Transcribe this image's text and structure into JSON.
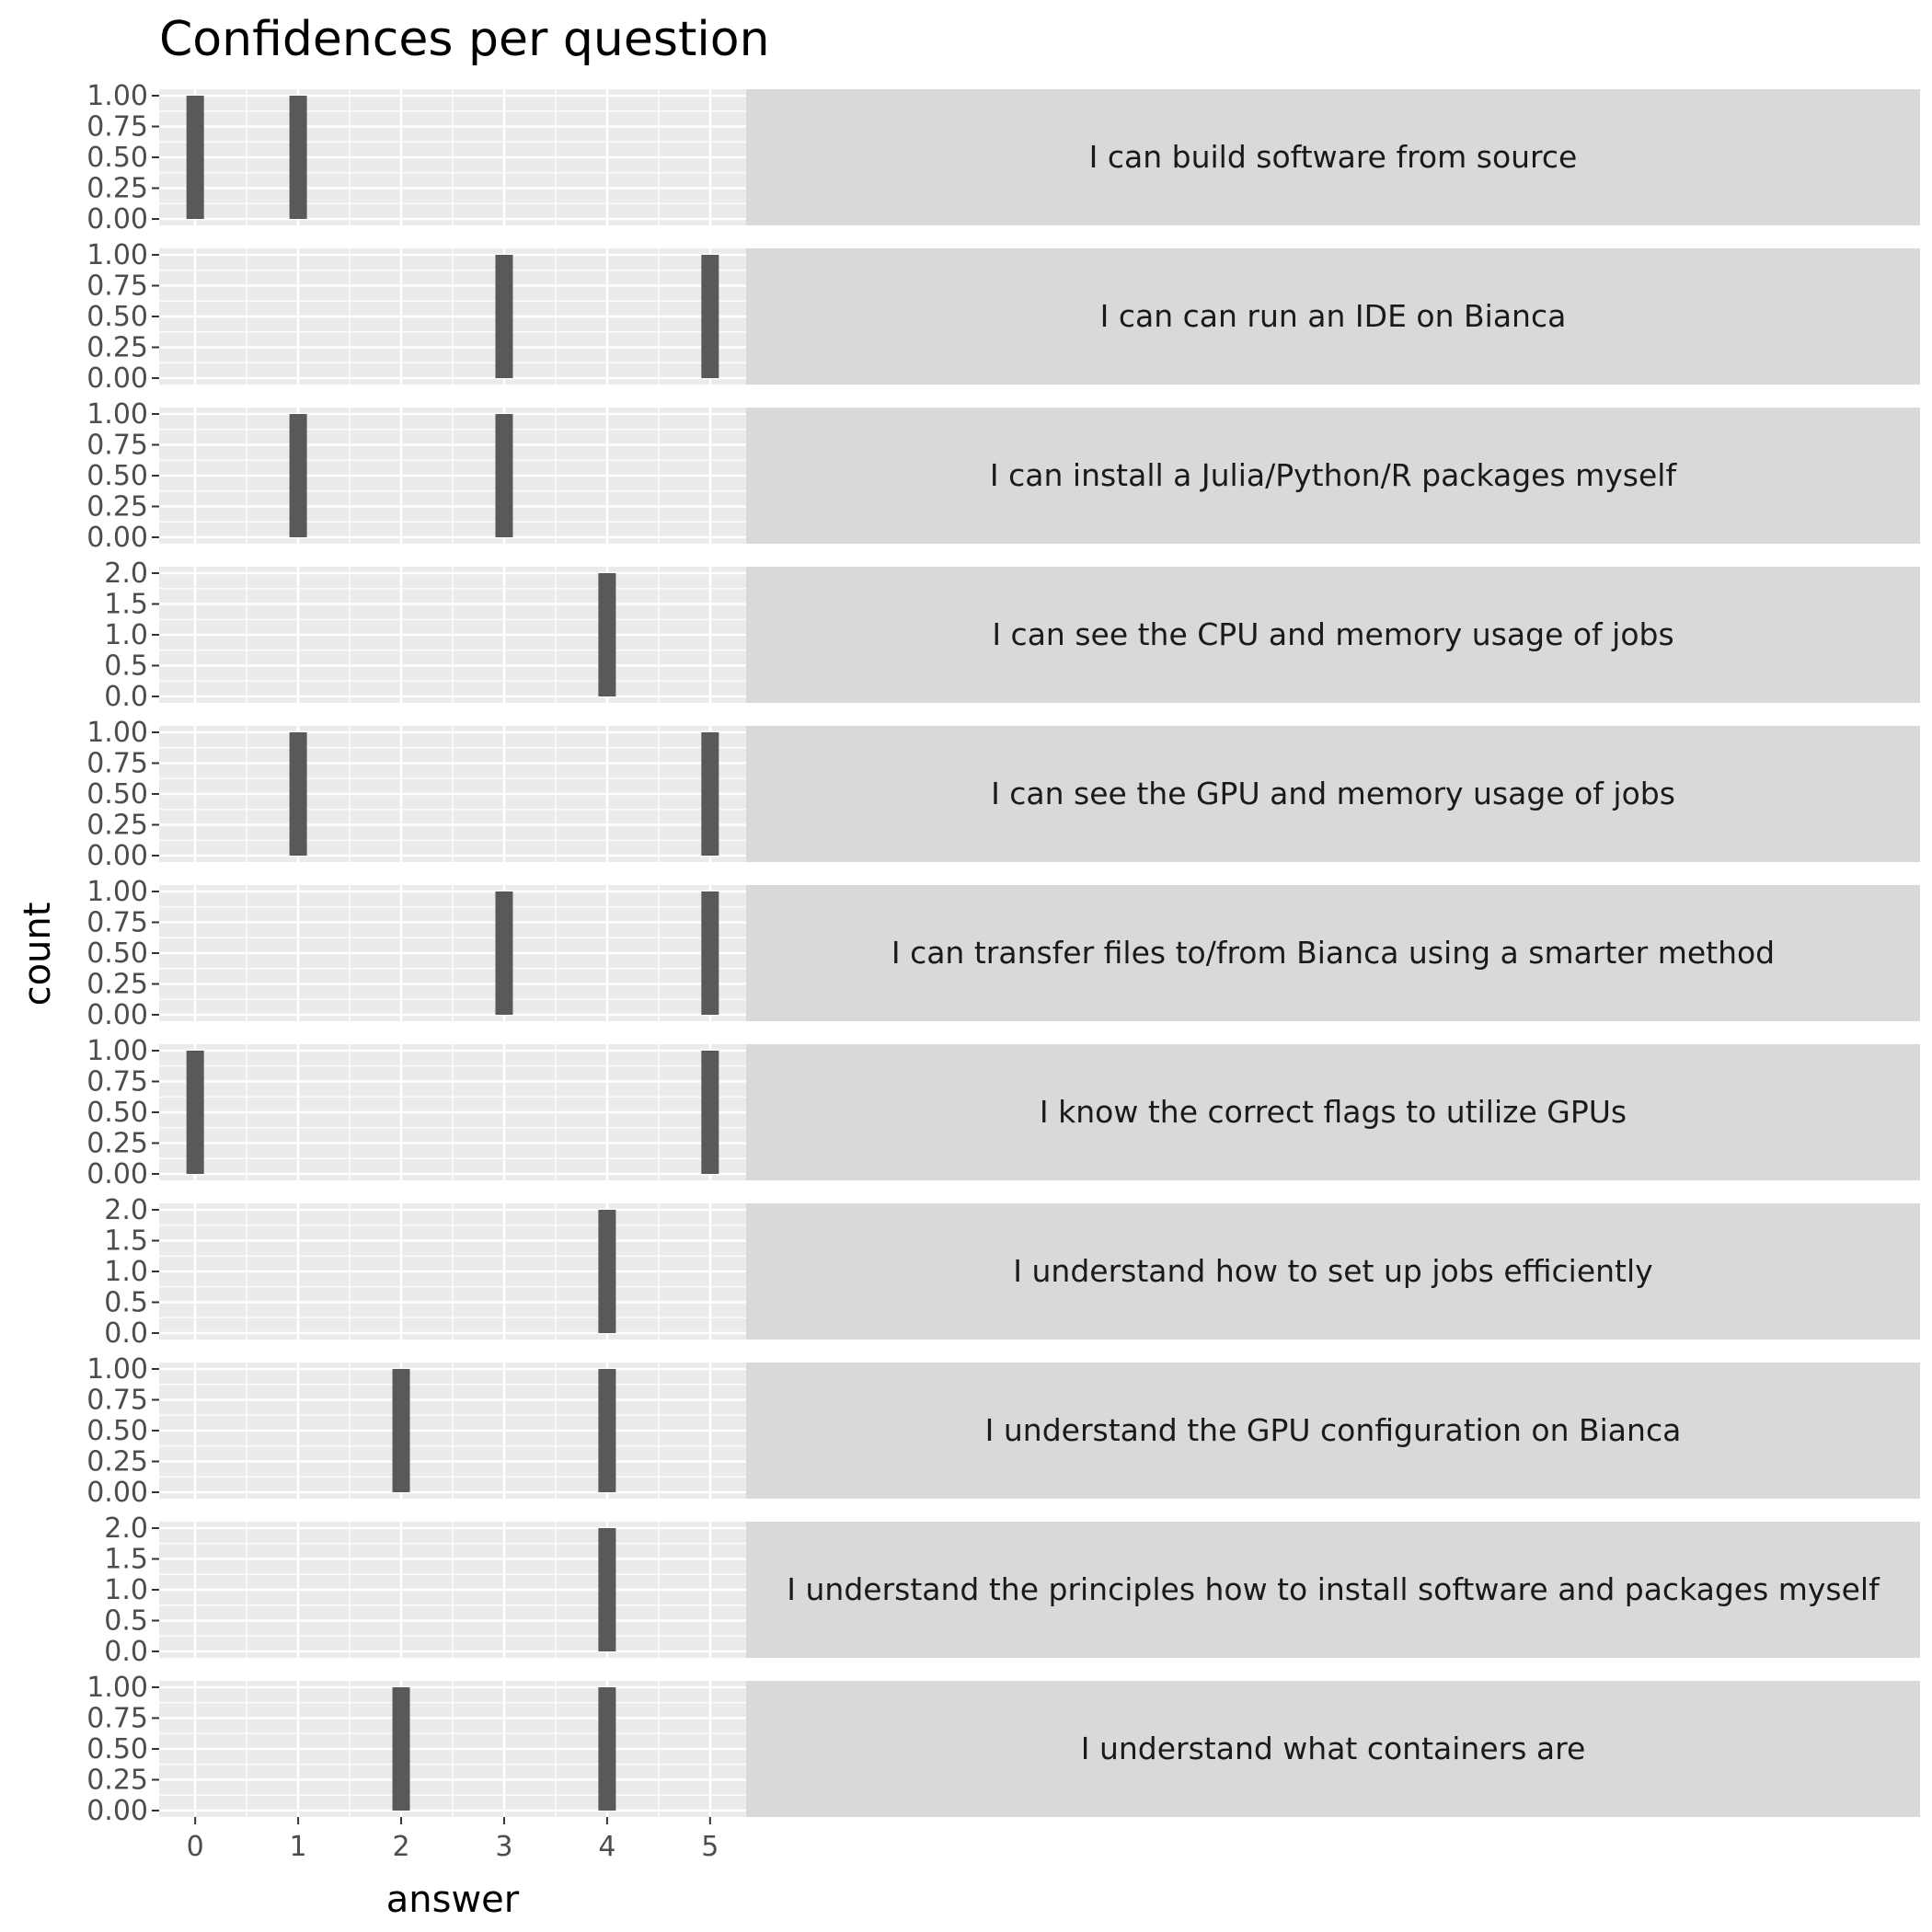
{
  "chart_data": {
    "type": "bar",
    "title": "Confidences per question",
    "xlabel": "answer",
    "ylabel": "count",
    "x_ticks": [
      0,
      1,
      2,
      3,
      4,
      5
    ],
    "xlim": [
      -0.35,
      5.35
    ],
    "grid": true,
    "panels": [
      {
        "label": "I can build software from source",
        "ylim": [
          0,
          1
        ],
        "y_ticks": [
          "0.00",
          "0.25",
          "0.50",
          "0.75",
          "1.00"
        ],
        "bars": [
          {
            "x": 0,
            "y": 1
          },
          {
            "x": 1,
            "y": 1
          }
        ]
      },
      {
        "label": "I can can run an IDE on Bianca",
        "ylim": [
          0,
          1
        ],
        "y_ticks": [
          "0.00",
          "0.25",
          "0.50",
          "0.75",
          "1.00"
        ],
        "bars": [
          {
            "x": 3,
            "y": 1
          },
          {
            "x": 5,
            "y": 1
          }
        ]
      },
      {
        "label": "I can install a Julia/Python/R packages myself",
        "ylim": [
          0,
          1
        ],
        "y_ticks": [
          "0.00",
          "0.25",
          "0.50",
          "0.75",
          "1.00"
        ],
        "bars": [
          {
            "x": 1,
            "y": 1
          },
          {
            "x": 3,
            "y": 1
          }
        ]
      },
      {
        "label": "I can see the CPU and memory usage of jobs",
        "ylim": [
          0,
          2
        ],
        "y_ticks": [
          "0.0",
          "0.5",
          "1.0",
          "1.5",
          "2.0"
        ],
        "bars": [
          {
            "x": 4,
            "y": 2
          }
        ]
      },
      {
        "label": "I can see the GPU and memory usage of jobs",
        "ylim": [
          0,
          1
        ],
        "y_ticks": [
          "0.00",
          "0.25",
          "0.50",
          "0.75",
          "1.00"
        ],
        "bars": [
          {
            "x": 1,
            "y": 1
          },
          {
            "x": 5,
            "y": 1
          }
        ]
      },
      {
        "label": "I can transfer files to/from Bianca using a smarter method",
        "ylim": [
          0,
          1
        ],
        "y_ticks": [
          "0.00",
          "0.25",
          "0.50",
          "0.75",
          "1.00"
        ],
        "bars": [
          {
            "x": 3,
            "y": 1
          },
          {
            "x": 5,
            "y": 1
          }
        ]
      },
      {
        "label": "I know the correct flags to utilize GPUs",
        "ylim": [
          0,
          1
        ],
        "y_ticks": [
          "0.00",
          "0.25",
          "0.50",
          "0.75",
          "1.00"
        ],
        "bars": [
          {
            "x": 0,
            "y": 1
          },
          {
            "x": 5,
            "y": 1
          }
        ]
      },
      {
        "label": "I understand how to set up jobs efficiently",
        "ylim": [
          0,
          2
        ],
        "y_ticks": [
          "0.0",
          "0.5",
          "1.0",
          "1.5",
          "2.0"
        ],
        "bars": [
          {
            "x": 4,
            "y": 2
          }
        ]
      },
      {
        "label": "I understand the GPU configuration on Bianca",
        "ylim": [
          0,
          1
        ],
        "y_ticks": [
          "0.00",
          "0.25",
          "0.50",
          "0.75",
          "1.00"
        ],
        "bars": [
          {
            "x": 2,
            "y": 1
          },
          {
            "x": 4,
            "y": 1
          }
        ]
      },
      {
        "label": "I understand the principles how to install software and packages myself",
        "ylim": [
          0,
          2
        ],
        "y_ticks": [
          "0.0",
          "0.5",
          "1.0",
          "1.5",
          "2.0"
        ],
        "bars": [
          {
            "x": 4,
            "y": 2
          }
        ]
      },
      {
        "label": "I understand what containers are",
        "ylim": [
          0,
          1
        ],
        "y_ticks": [
          "0.00",
          "0.25",
          "0.50",
          "0.75",
          "1.00"
        ],
        "bars": [
          {
            "x": 2,
            "y": 1
          },
          {
            "x": 4,
            "y": 1
          }
        ]
      }
    ],
    "colors": {
      "bar": "#595959",
      "panel_background": "#ebebeb",
      "grid": "#ffffff",
      "strip_background": "#d9d9d9",
      "tick_label": "#4d4d4d"
    }
  }
}
